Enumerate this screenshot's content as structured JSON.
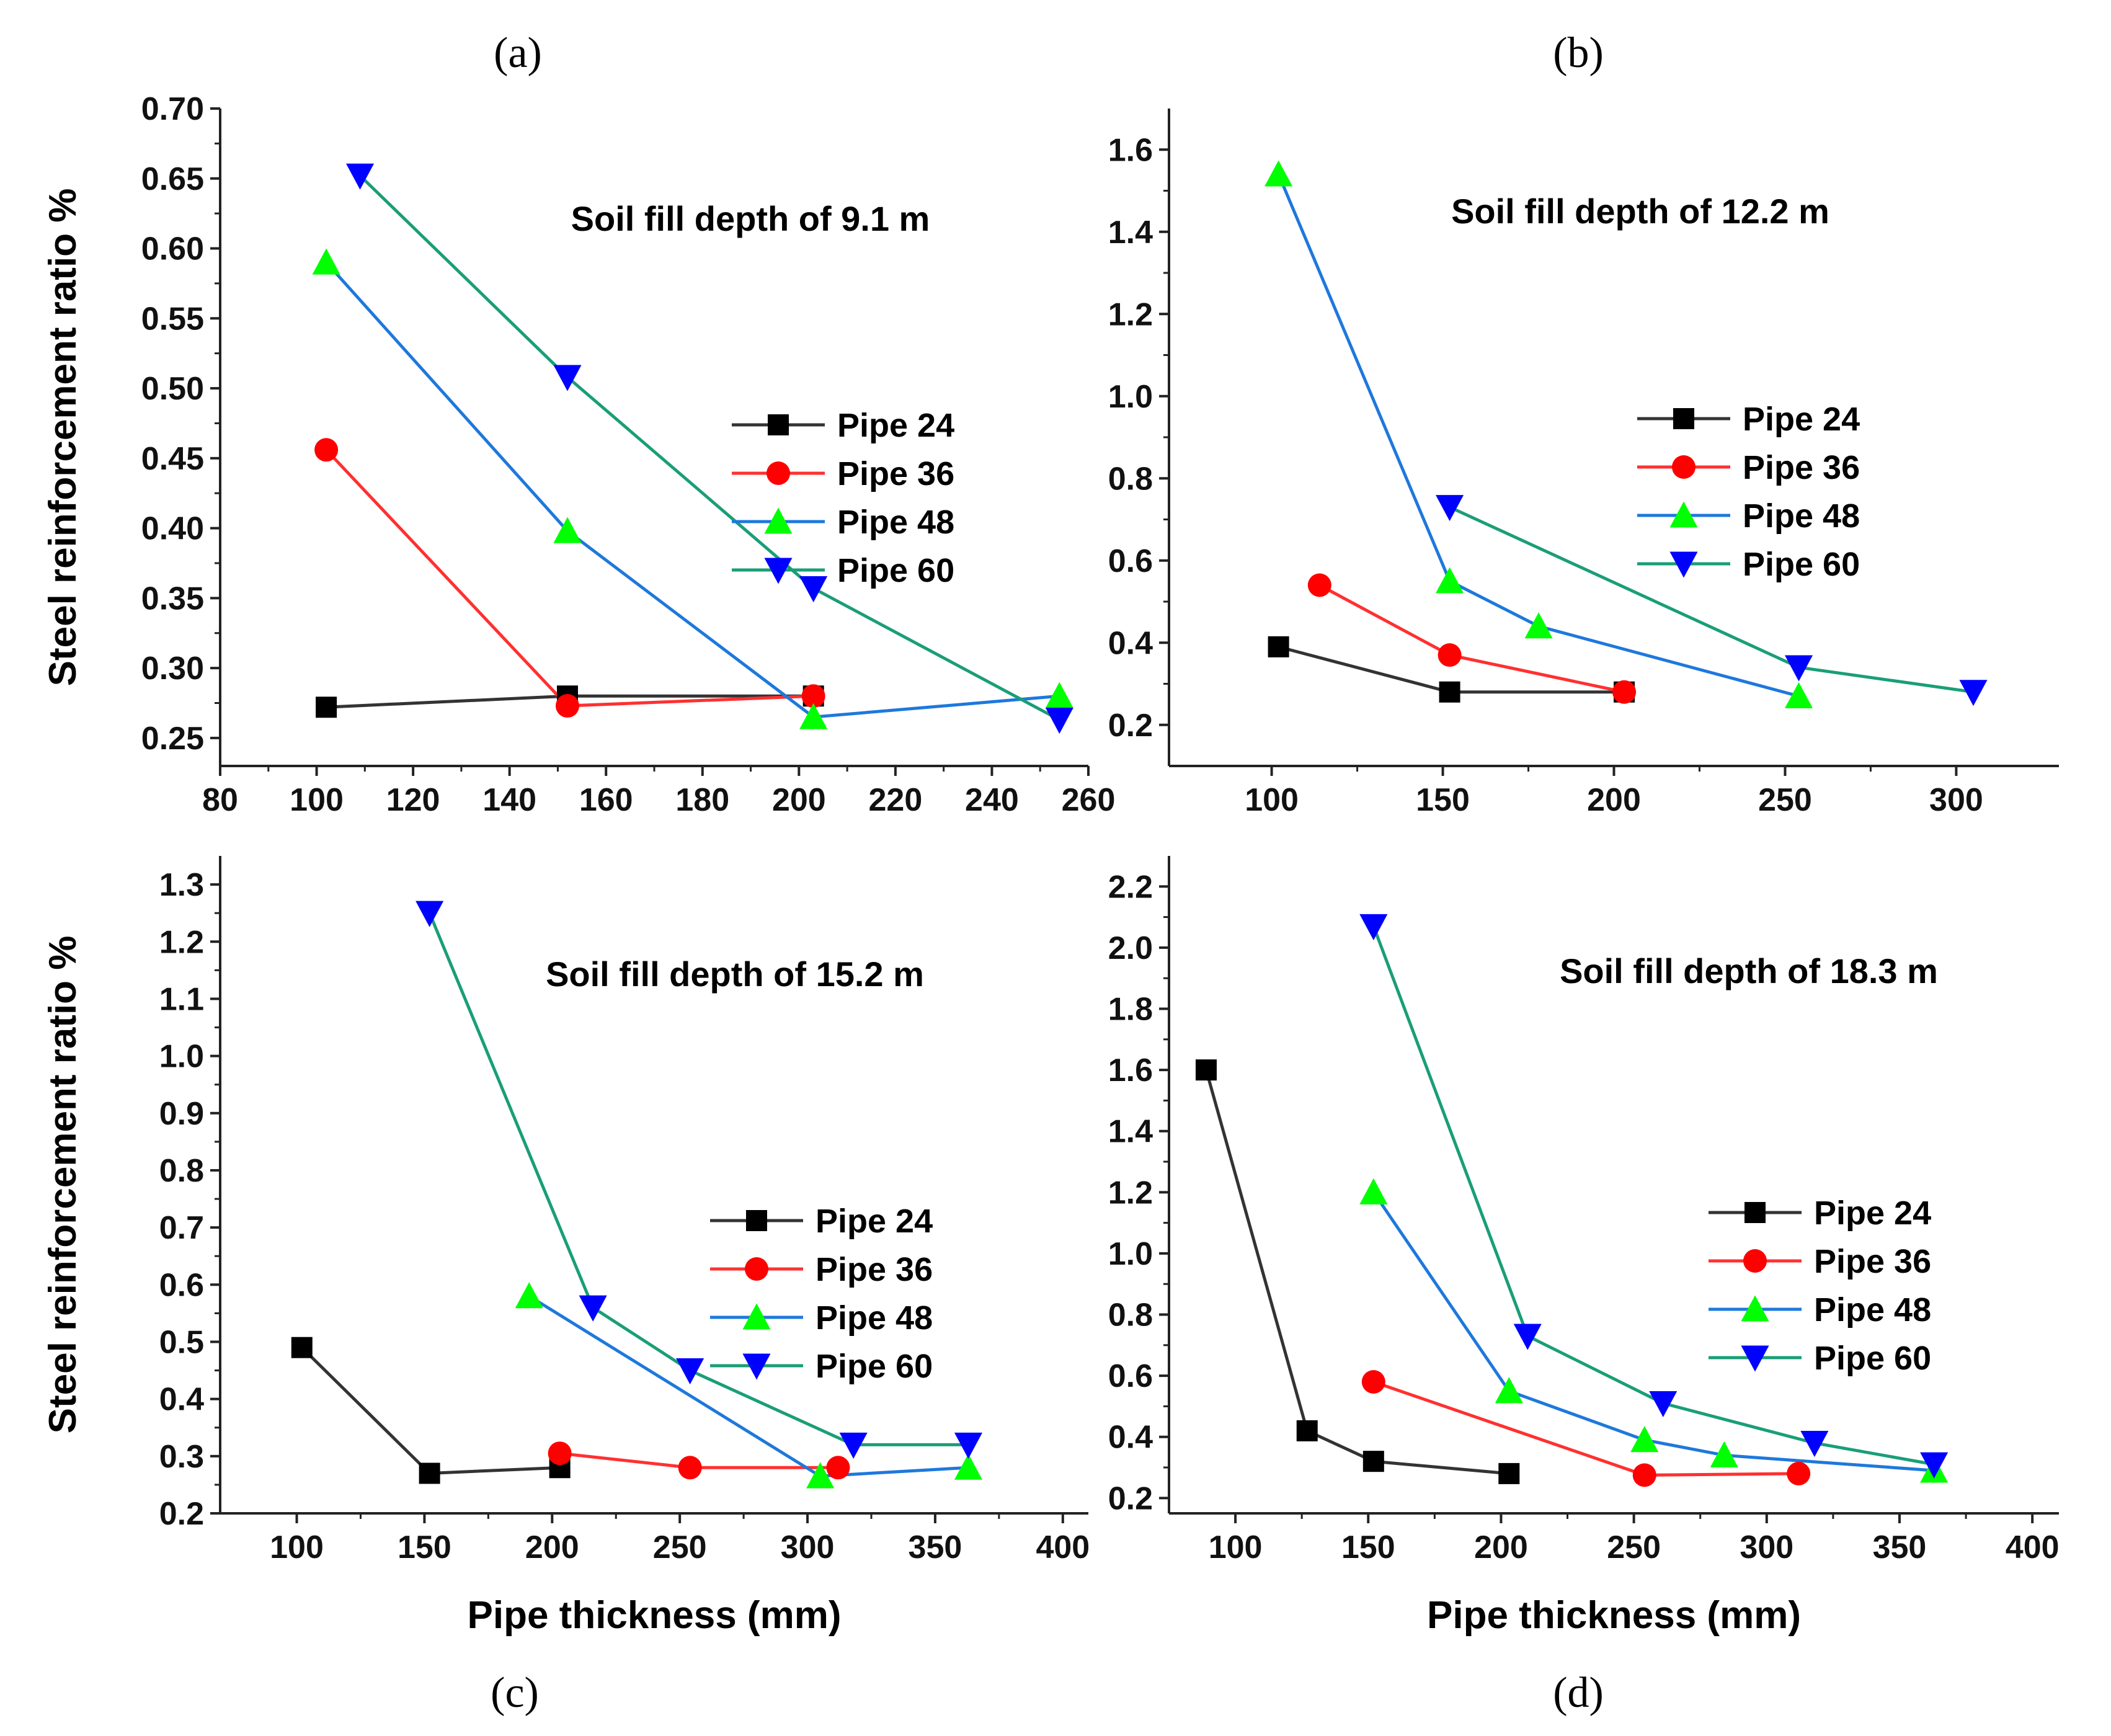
{
  "figure": {
    "x_title": "Pipe thickness (mm)",
    "y_title": "Steel reinforcement ratio %"
  },
  "colors": {
    "Pipe 24": "#000000",
    "Pipe 36": "#ff0000",
    "Pipe 48": "#00ff00",
    "Pipe 60": "#0000ff",
    "line_Pipe 48": "#1e78dc",
    "line_Pipe 60": "#1a9e77"
  },
  "chart_data": [
    {
      "type": "line",
      "panel_label": "(a)",
      "annotation": "Soil fill depth of 9.1 m",
      "title": "",
      "xlabel": "",
      "ylabel": "Steel reinforcement ratio %",
      "xlim": [
        80,
        260
      ],
      "ylim": [
        0.23,
        0.7
      ],
      "xticks": [
        80,
        100,
        120,
        140,
        160,
        180,
        200,
        220,
        240,
        260
      ],
      "yticks": [
        0.25,
        0.3,
        0.35,
        0.4,
        0.45,
        0.5,
        0.55,
        0.6,
        0.65,
        0.7
      ],
      "xtick_labels": [
        "80",
        "100",
        "120",
        "140",
        "160",
        "180",
        "200",
        "220",
        "240",
        "260"
      ],
      "ytick_labels": [
        "0.25",
        "0.30",
        "0.35",
        "0.40",
        "0.45",
        "0.50",
        "0.55",
        "0.60",
        "0.65",
        "0.70"
      ],
      "legend_position": "middle-right",
      "series": [
        {
          "name": "Pipe 24",
          "x": [
            102,
            152,
            203
          ],
          "y": [
            0.272,
            0.28,
            0.28
          ]
        },
        {
          "name": "Pipe 36",
          "x": [
            102,
            152,
            203
          ],
          "y": [
            0.456,
            0.273,
            0.28
          ]
        },
        {
          "name": "Pipe 48",
          "x": [
            102,
            152,
            203,
            254
          ],
          "y": [
            0.59,
            0.398,
            0.265,
            0.28
          ]
        },
        {
          "name": "Pipe 60",
          "x": [
            109,
            152,
            203,
            254
          ],
          "y": [
            0.652,
            0.508,
            0.357,
            0.263
          ]
        }
      ]
    },
    {
      "type": "line",
      "panel_label": "(b)",
      "annotation": "Soil fill depth of 12.2 m",
      "title": "",
      "xlabel": "",
      "ylabel": "",
      "xlim": [
        70,
        330
      ],
      "ylim": [
        0.1,
        1.7
      ],
      "xticks": [
        100,
        150,
        200,
        250,
        300
      ],
      "yticks": [
        0.2,
        0.4,
        0.6,
        0.8,
        1.0,
        1.2,
        1.4,
        1.6
      ],
      "xtick_labels": [
        "100",
        "150",
        "200",
        "250",
        "300"
      ],
      "ytick_labels": [
        "0.2",
        "0.4",
        "0.6",
        "0.8",
        "1.0",
        "1.2",
        "1.4",
        "1.6"
      ],
      "legend_position": "middle-right",
      "series": [
        {
          "name": "Pipe 24",
          "x": [
            102,
            152,
            203
          ],
          "y": [
            0.39,
            0.28,
            0.28
          ]
        },
        {
          "name": "Pipe 36",
          "x": [
            114,
            152,
            203
          ],
          "y": [
            0.54,
            0.37,
            0.28
          ]
        },
        {
          "name": "Pipe 48",
          "x": [
            102,
            152,
            178,
            254
          ],
          "y": [
            1.54,
            0.55,
            0.44,
            0.27
          ]
        },
        {
          "name": "Pipe 60",
          "x": [
            152,
            254,
            305
          ],
          "y": [
            0.73,
            0.34,
            0.28
          ]
        }
      ]
    },
    {
      "type": "line",
      "panel_label": "(c)",
      "annotation": "Soil fill depth of 15.2 m",
      "title": "",
      "xlabel": "Pipe thickness (mm)",
      "ylabel": "Steel reinforcement ratio %",
      "xlim": [
        70,
        410
      ],
      "ylim": [
        0.2,
        1.35
      ],
      "xticks": [
        100,
        150,
        200,
        250,
        300,
        350,
        400
      ],
      "yticks": [
        0.2,
        0.3,
        0.4,
        0.5,
        0.6,
        0.7,
        0.8,
        0.9,
        1.0,
        1.1,
        1.2,
        1.3
      ],
      "xtick_labels": [
        "100",
        "150",
        "200",
        "250",
        "300",
        "350",
        "400"
      ],
      "ytick_labels": [
        "0.2",
        "0.3",
        "0.4",
        "0.5",
        "0.6",
        "0.7",
        "0.8",
        "0.9",
        "1.0",
        "1.1",
        "1.2",
        "1.3"
      ],
      "legend_position": "middle-right",
      "series": [
        {
          "name": "Pipe 24",
          "x": [
            102,
            152,
            203
          ],
          "y": [
            0.49,
            0.27,
            0.28
          ]
        },
        {
          "name": "Pipe 36",
          "x": [
            203,
            254,
            312
          ],
          "y": [
            0.305,
            0.28,
            0.28
          ]
        },
        {
          "name": "Pipe 48",
          "x": [
            191,
            305,
            363
          ],
          "y": [
            0.58,
            0.265,
            0.28
          ]
        },
        {
          "name": "Pipe 60",
          "x": [
            152,
            216,
            254,
            318,
            363
          ],
          "y": [
            1.25,
            0.56,
            0.45,
            0.32,
            0.32
          ]
        }
      ]
    },
    {
      "type": "line",
      "panel_label": "(d)",
      "annotation": "Soil fill depth of 18.3 m",
      "title": "",
      "xlabel": "Pipe thickness (mm)",
      "ylabel": "",
      "xlim": [
        75,
        410
      ],
      "ylim": [
        0.15,
        2.3
      ],
      "xticks": [
        100,
        150,
        200,
        250,
        300,
        350,
        400
      ],
      "yticks": [
        0.2,
        0.4,
        0.6,
        0.8,
        1.0,
        1.2,
        1.4,
        1.6,
        1.8,
        2.0,
        2.2
      ],
      "xtick_labels": [
        "100",
        "150",
        "200",
        "250",
        "300",
        "350",
        "400"
      ],
      "ytick_labels": [
        "0.2",
        "0.4",
        "0.6",
        "0.8",
        "1.0",
        "1.2",
        "1.4",
        "1.6",
        "1.8",
        "2.0",
        "2.2"
      ],
      "legend_position": "middle-right",
      "series": [
        {
          "name": "Pipe 24",
          "x": [
            89,
            127,
            152,
            203
          ],
          "y": [
            1.6,
            0.42,
            0.32,
            0.28
          ]
        },
        {
          "name": "Pipe 36",
          "x": [
            152,
            254,
            312
          ],
          "y": [
            0.58,
            0.275,
            0.28
          ]
        },
        {
          "name": "Pipe 48",
          "x": [
            152,
            203,
            254,
            284,
            363
          ],
          "y": [
            1.2,
            0.55,
            0.39,
            0.34,
            0.29
          ]
        },
        {
          "name": "Pipe 60",
          "x": [
            152,
            210,
            261,
            318,
            363
          ],
          "y": [
            2.07,
            0.73,
            0.51,
            0.38,
            0.31
          ]
        }
      ]
    }
  ]
}
